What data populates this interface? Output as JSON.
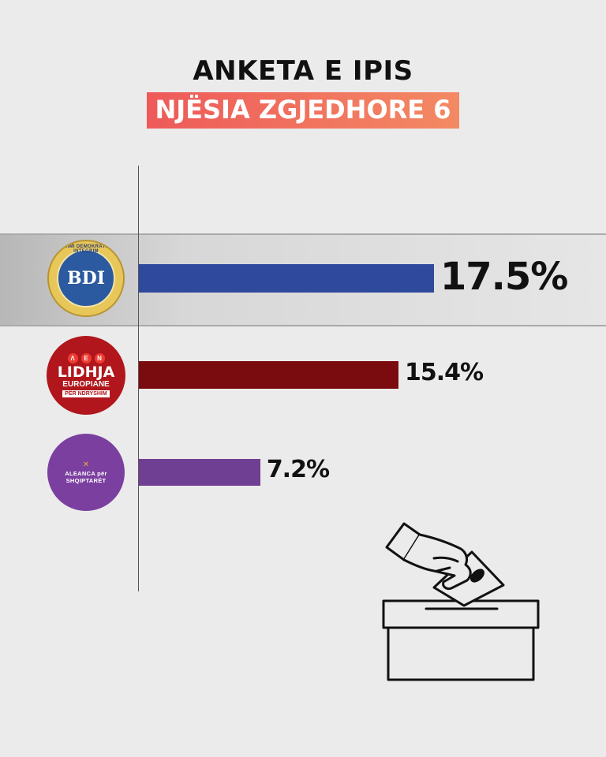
{
  "header": {
    "title": "ANKETA E IPIS",
    "subtitle": "NJËSIA ZGJEDHORE 6"
  },
  "chart_data": {
    "type": "bar",
    "orientation": "horizontal",
    "categories": [
      "BDI",
      "Lidhja Europiane për Ndryshim",
      "Aleanca për Shqiptarët"
    ],
    "values": [
      17.5,
      15.4,
      7.2
    ],
    "value_labels": [
      "17.5%",
      "15.4%",
      "7.2%"
    ],
    "colors": [
      "#2f4a9c",
      "#7a0c10",
      "#6f3f93"
    ],
    "xlim": [
      0,
      22
    ],
    "highlight_index": 0,
    "grid": false,
    "legend": "none"
  },
  "logos": {
    "bdi": {
      "ring_text": "BASHKIMI DEMOKRATIK PËR INTEGRIM",
      "initials": "BDI"
    },
    "le": {
      "line1": "LIDHJA",
      "line2": "EUROPIANE",
      "line3": "PËR NDRYSHIM",
      "dots": [
        "Λ",
        "E",
        "N"
      ]
    },
    "aa": {
      "text": "ALEANCA për SHQIPTARËT"
    }
  },
  "icons": {
    "ballot": "ballot-box-icon"
  }
}
